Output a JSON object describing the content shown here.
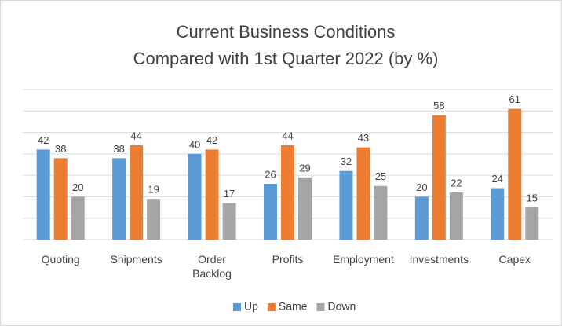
{
  "chart_data": {
    "type": "bar",
    "title": [
      "Current Business Conditions",
      "Compared with 1st Quarter 2022 (by %)"
    ],
    "categories": [
      "Quoting",
      "Shipments",
      "Order Backlog",
      "Profits",
      "Employment",
      "Investments",
      "Capex"
    ],
    "series": [
      {
        "name": "Up",
        "color": "#5b9bd5",
        "values": [
          42,
          38,
          40,
          26,
          32,
          20,
          24
        ]
      },
      {
        "name": "Same",
        "color": "#ed7d31",
        "values": [
          38,
          44,
          42,
          44,
          43,
          58,
          61
        ]
      },
      {
        "name": "Down",
        "color": "#a5a5a5",
        "values": [
          20,
          19,
          17,
          29,
          25,
          22,
          15
        ]
      }
    ],
    "ylim": [
      0,
      70
    ],
    "yticks": [
      0,
      10,
      20,
      30,
      40,
      50,
      60,
      70
    ],
    "grid": true,
    "legend": "bottom"
  }
}
